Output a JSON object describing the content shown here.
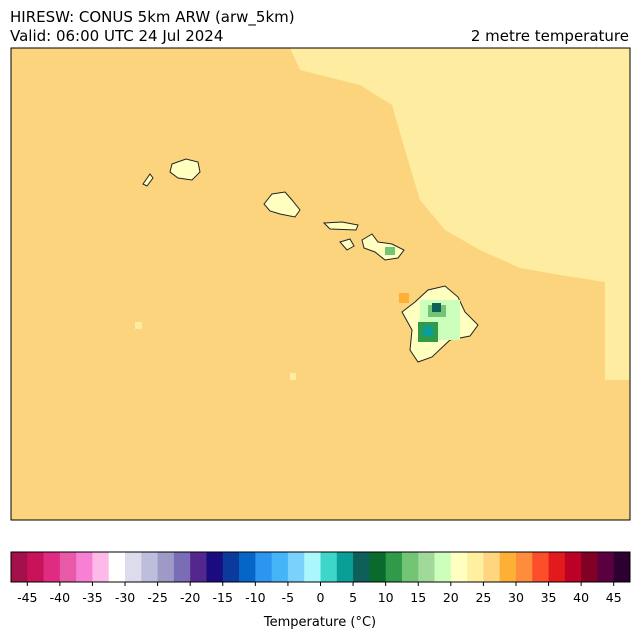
{
  "header": {
    "title": "HIRESW: CONUS 5km ARW (arw_5km)",
    "valid": "Valid: 06:00 UTC 24 Jul 2024",
    "field": "2 metre temperature"
  },
  "colorbar": {
    "label": "Temperature (°C)",
    "range": [
      -47.5,
      47.5
    ],
    "colors": [
      "#a3104a",
      "#c8125a",
      "#e02b83",
      "#e65aa8",
      "#f77fd4",
      "#fdb9e8",
      "#ffffff",
      "#dcdcec",
      "#bdbddc",
      "#9e9ac8",
      "#7b6db5",
      "#54278f",
      "#1a0c80",
      "#0c3a9c",
      "#0566c8",
      "#2b95f0",
      "#45b5f8",
      "#7ad2fc",
      "#aaf8fb",
      "#3dd6c8",
      "#0a9e98",
      "#0e5e5a",
      "#0a6a2e",
      "#2e9a4a",
      "#74c476",
      "#a1d99b",
      "#ccffbb",
      "#ffffc0",
      "#fff0a0",
      "#fed680",
      "#fdb035",
      "#fd8d3c",
      "#fc4e2a",
      "#e31a1c",
      "#bd0026",
      "#800026",
      "#5a0040",
      "#2d0030"
    ],
    "ticks": [
      -45,
      -40,
      -35,
      -30,
      -25,
      -20,
      -15,
      -10,
      -5,
      0,
      5,
      10,
      15,
      20,
      25,
      30,
      35,
      40,
      45
    ]
  }
}
